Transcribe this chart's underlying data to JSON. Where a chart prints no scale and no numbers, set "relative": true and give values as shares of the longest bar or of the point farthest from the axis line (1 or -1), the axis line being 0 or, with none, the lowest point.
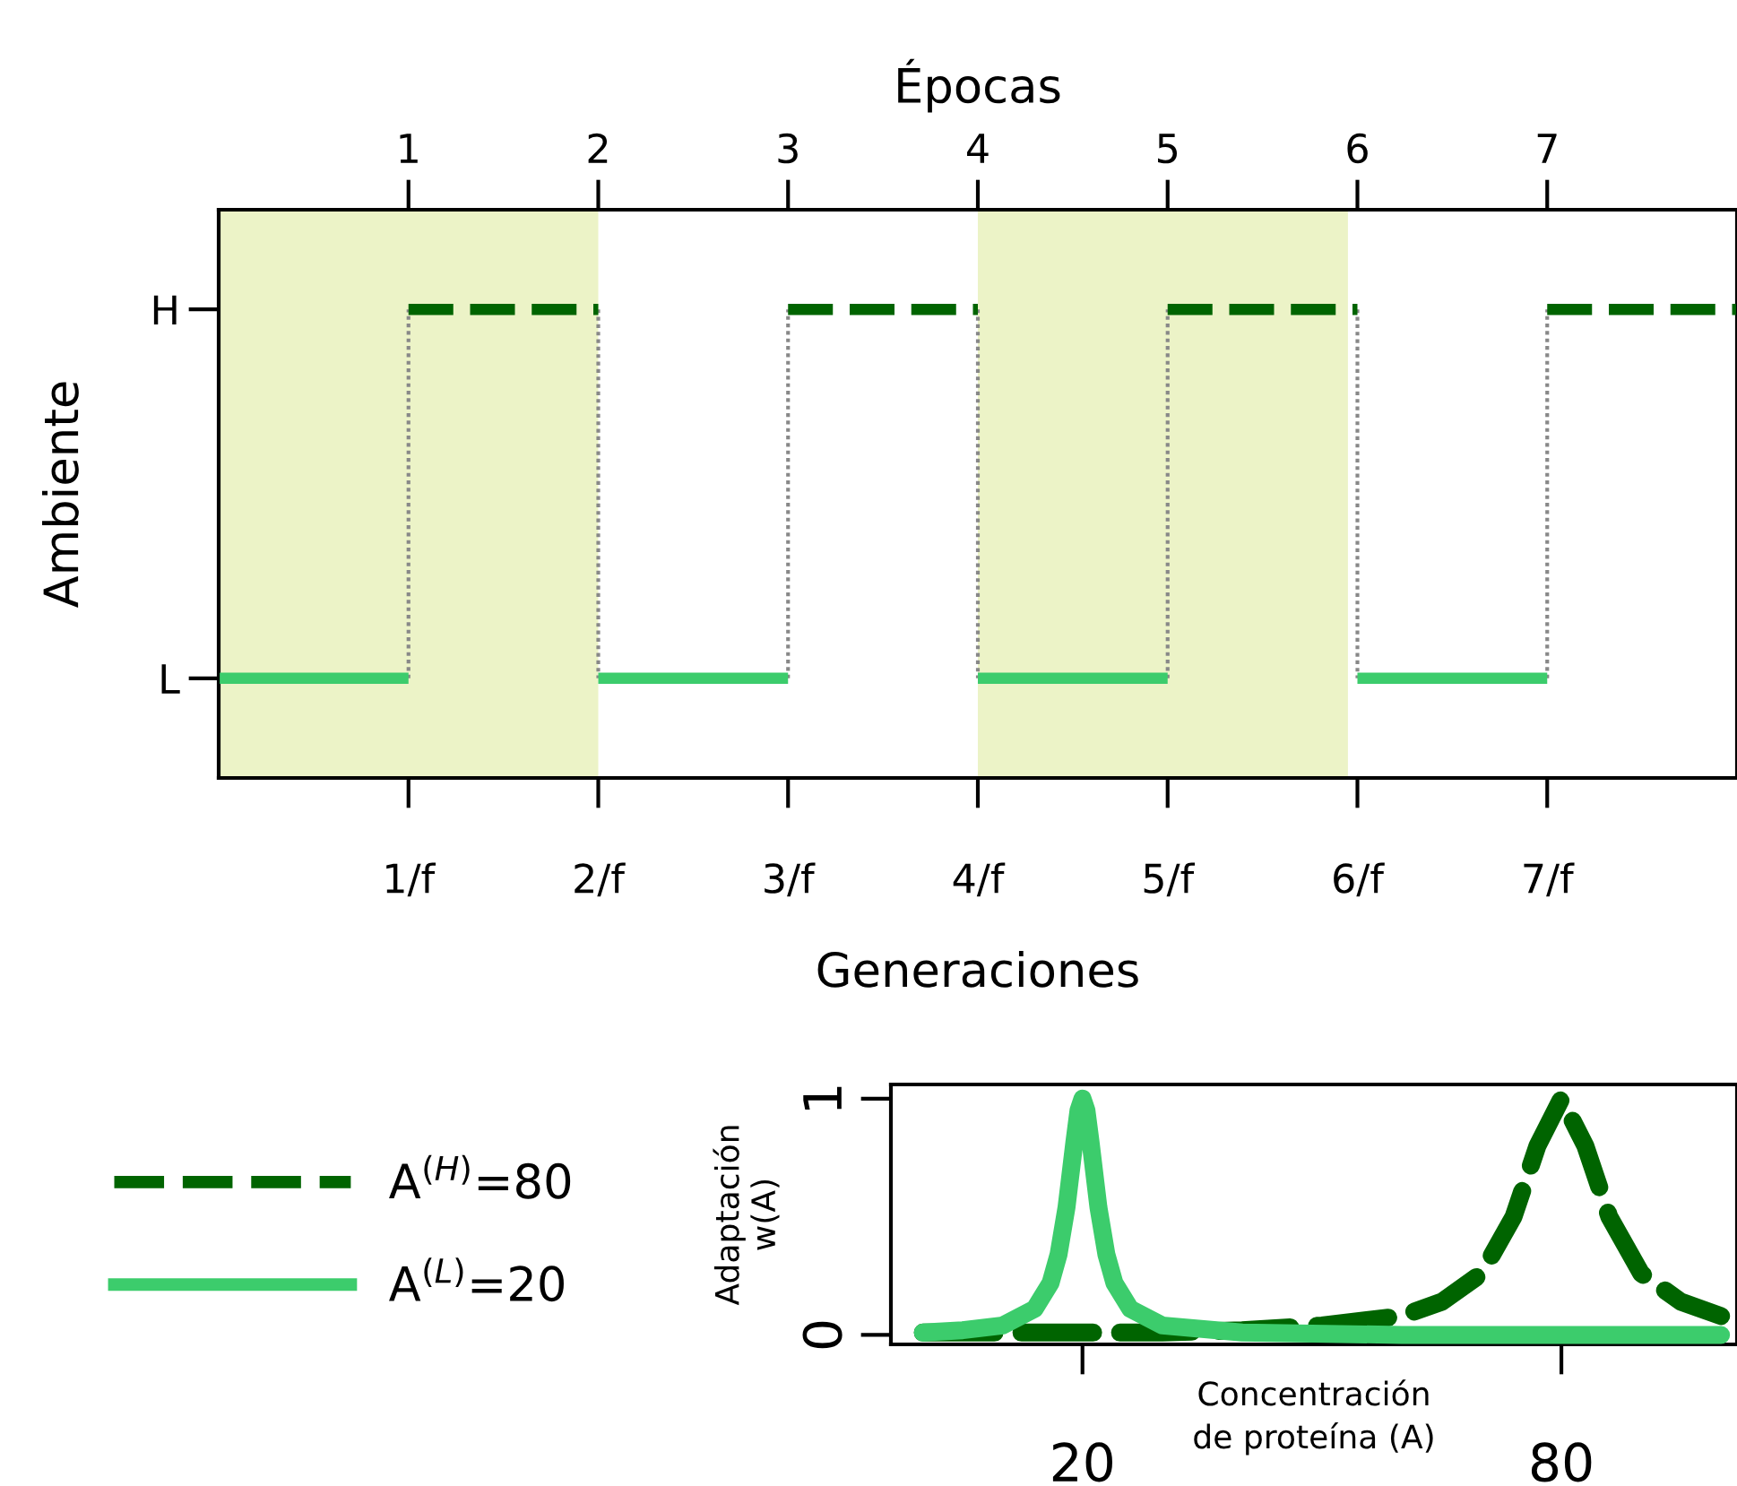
{
  "chart_data": [
    {
      "type": "line",
      "xlabel": "Generaciones",
      "ylabel": "Ambiente",
      "x2label": "Épocas",
      "xlim": [
        0,
        8
      ],
      "xticks": [
        {
          "value": 1,
          "label": "1/f"
        },
        {
          "value": 2,
          "label": "2/f"
        },
        {
          "value": 3,
          "label": "3/f"
        },
        {
          "value": 4,
          "label": "4/f"
        },
        {
          "value": 5,
          "label": "5/f"
        },
        {
          "value": 6,
          "label": "6/f"
        },
        {
          "value": 7,
          "label": "7/f"
        }
      ],
      "x2lim": [
        0,
        8
      ],
      "x2ticks": [
        1,
        2,
        3,
        4,
        5,
        6,
        7
      ],
      "relative": true,
      "annotations": [
        "H",
        "L"
      ],
      "grid": false,
      "bands": [
        {
          "axis": "x",
          "from": 0,
          "to": 2,
          "color": "#ecf3c7"
        },
        {
          "axis": "x",
          "from": 4,
          "to": 5.95,
          "color": "#ecf3c7"
        }
      ],
      "series": [
        {
          "color": "#888888",
          "line_style": "dotted",
          "x": [
            1,
            1,
            null,
            2,
            2,
            null,
            3,
            3,
            null,
            4,
            4,
            null,
            5,
            5,
            null,
            6,
            6,
            null,
            7,
            7
          ],
          "values": [
            0,
            1,
            null,
            1,
            0,
            null,
            0,
            1,
            null,
            1,
            0,
            null,
            0,
            1,
            null,
            1,
            0,
            null,
            0,
            1
          ]
        },
        {
          "color": "#006400",
          "line_style": "dashed",
          "x": [
            1,
            2,
            null,
            3,
            4,
            null,
            5,
            6,
            null,
            7,
            8
          ],
          "values": [
            1,
            1,
            null,
            1,
            1,
            null,
            1,
            1,
            null,
            1,
            1
          ]
        },
        {
          "color": "#3ccc6c",
          "line_style": "solid",
          "x": [
            0,
            1,
            null,
            2,
            3,
            null,
            4,
            5,
            null,
            6,
            7
          ],
          "values": [
            0,
            0,
            null,
            0,
            0,
            null,
            0,
            0,
            null,
            0,
            0
          ]
        }
      ]
    },
    {
      "type": "line",
      "xlabel": "Concentración\nde proteína (A)",
      "ylabel": "Adaptación\nw(A)",
      "xlim": [
        -4,
        102
      ],
      "ylim": [
        -0.04,
        1.06
      ],
      "xticks": [
        20,
        80
      ],
      "yticks": [
        0,
        1
      ],
      "grid": false,
      "legend": "left",
      "series": [
        {
          "name": "A$^{(H)}$=80",
          "color": "#006400",
          "line_style": "dashed",
          "x": [
            0,
            10,
            20,
            30,
            40,
            50,
            60,
            65,
            70,
            74,
            77,
            80,
            83,
            86,
            90,
            95,
            100
          ],
          "values": [
            0.01,
            0.01,
            0.01,
            0.01,
            0.02,
            0.04,
            0.08,
            0.14,
            0.26,
            0.5,
            0.8,
            1,
            0.8,
            0.5,
            0.26,
            0.14,
            0.08
          ]
        },
        {
          "name": "A$^{(L)}$=20",
          "color": "#3ccc6c",
          "line_style": "solid",
          "x": [
            0,
            5,
            10,
            14,
            16,
            17,
            18,
            19,
            19.5,
            20,
            20.5,
            21,
            22,
            23,
            24,
            26,
            30,
            40,
            60,
            80,
            100
          ],
          "values": [
            0.01,
            0.02,
            0.04,
            0.11,
            0.22,
            0.34,
            0.54,
            0.82,
            0.95,
            1,
            0.95,
            0.82,
            0.54,
            0.34,
            0.22,
            0.11,
            0.04,
            0.01,
            0,
            0,
            0
          ]
        }
      ]
    }
  ]
}
